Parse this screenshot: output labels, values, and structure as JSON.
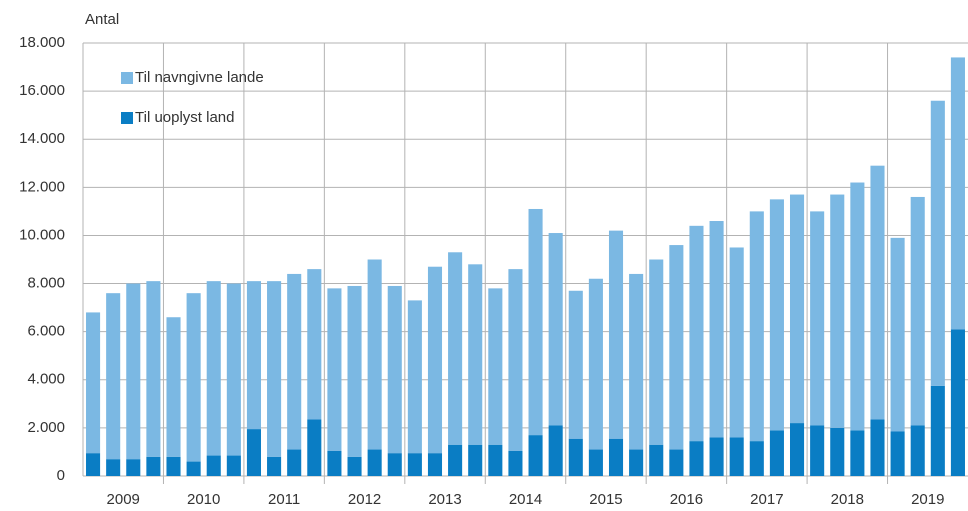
{
  "chart_data": {
    "type": "stacked_bar",
    "y_axis_label": "Antal",
    "categories": [
      "2009",
      null,
      null,
      null,
      "2010",
      null,
      null,
      null,
      "2011",
      null,
      null,
      null,
      "2012",
      null,
      null,
      null,
      "2013",
      null,
      null,
      null,
      "2014",
      null,
      null,
      null,
      "2015",
      null,
      null,
      null,
      "2016",
      null,
      null,
      null,
      "2017",
      null,
      null,
      null,
      "2018",
      null,
      null,
      null,
      "2019",
      null,
      null,
      null
    ],
    "series": [
      {
        "name": "Til uoplyst land",
        "color": "#0a7dc4",
        "values": [
          950,
          700,
          700,
          800,
          800,
          600,
          850,
          850,
          1950,
          800,
          1100,
          2350,
          1050,
          800,
          1100,
          950,
          950,
          950,
          1300,
          1300,
          1300,
          1050,
          1700,
          2100,
          1550,
          1100,
          1550,
          1100,
          1300,
          1100,
          1450,
          1600,
          1600,
          1450,
          1900,
          2200,
          2100,
          2000,
          1900,
          2350,
          1850,
          2100,
          3750,
          6100
        ]
      },
      {
        "name": "Til navngivne lande",
        "color": "#7bb8e3",
        "values": [
          5850,
          6900,
          7300,
          7300,
          5800,
          7000,
          7250,
          7150,
          6150,
          7300,
          7300,
          6250,
          6750,
          7100,
          7900,
          6950,
          6350,
          7750,
          8000,
          7500,
          6500,
          7550,
          9400,
          8000,
          6150,
          7100,
          8650,
          7300,
          7700,
          8500,
          8950,
          9000,
          7900,
          9550,
          9600,
          9500,
          8900,
          9700,
          10300,
          10550,
          8050,
          9500,
          11850,
          11300
        ]
      }
    ],
    "legend_order": [
      1,
      0
    ],
    "ylim": [
      0,
      18000
    ],
    "yticks": [
      0,
      {
        "value": 2000,
        "label": "2.000"
      },
      {
        "value": 4000,
        "label": "4.000"
      },
      {
        "value": 6000,
        "label": "6.000"
      },
      {
        "value": 8000,
        "label": "8.000"
      },
      {
        "value": 10000,
        "label": "10.000"
      },
      {
        "value": 12000,
        "label": "12.000"
      },
      {
        "value": 14000,
        "label": "14.000"
      },
      {
        "value": 16000,
        "label": "16.000"
      },
      {
        "value": 18000,
        "label": "18.000"
      }
    ],
    "grid": true
  }
}
